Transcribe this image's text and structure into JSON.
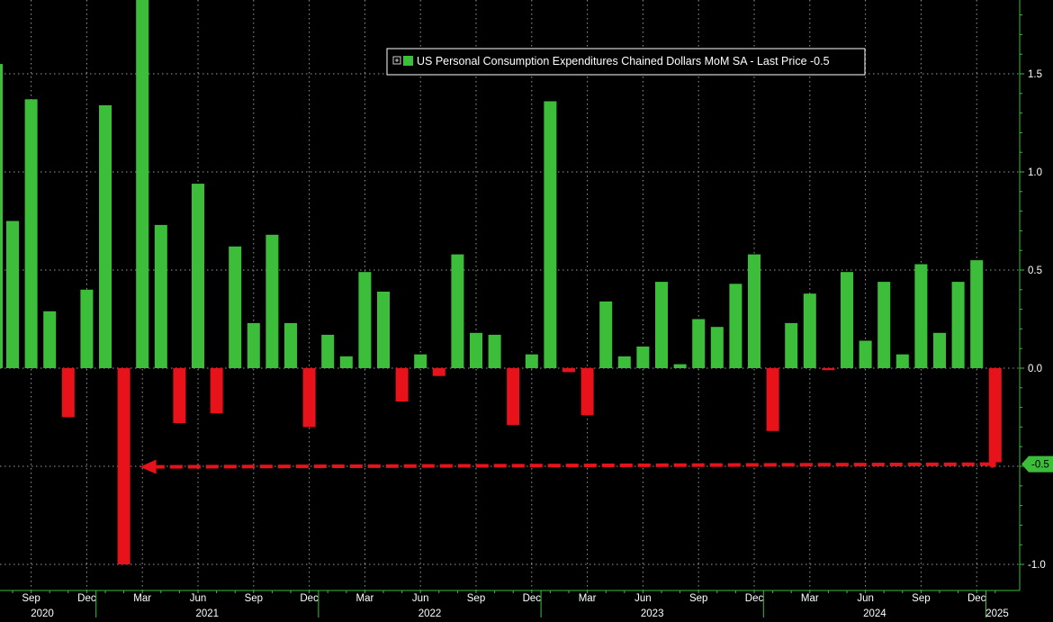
{
  "chart_data": {
    "type": "bar",
    "legend": {
      "label": "US Personal Consumption Expenditures Chained Dollars MoM SA - Last Price -0.5",
      "icon": "plus-box-icon",
      "position": "top-center"
    },
    "y_axis": {
      "side": "right",
      "ylim": [
        -1.0,
        1.9
      ],
      "ticks": [
        1.5,
        1.0,
        0.5,
        0.0,
        -0.5,
        -1.0
      ],
      "tick_labels": [
        "1.5",
        "1.0",
        "0.5",
        "0.0",
        "-0.5",
        "-1.0"
      ]
    },
    "last_price_label": "-0.5",
    "last_value": -0.48,
    "x_axis": {
      "month_labels": [
        {
          "index": 1,
          "label": "Sep"
        },
        {
          "index": 4,
          "label": "Dec"
        },
        {
          "index": 7,
          "label": "Mar"
        },
        {
          "index": 10,
          "label": "Jun"
        },
        {
          "index": 13,
          "label": "Sep"
        },
        {
          "index": 16,
          "label": "Dec"
        },
        {
          "index": 19,
          "label": "Mar"
        },
        {
          "index": 22,
          "label": "Jun"
        },
        {
          "index": 25,
          "label": "Sep"
        },
        {
          "index": 28,
          "label": "Dec"
        },
        {
          "index": 31,
          "label": "Mar"
        },
        {
          "index": 34,
          "label": "Jun"
        },
        {
          "index": 37,
          "label": "Sep"
        },
        {
          "index": 40,
          "label": "Dec"
        },
        {
          "index": 43,
          "label": "Mar"
        },
        {
          "index": 46,
          "label": "Jun"
        },
        {
          "index": 49,
          "label": "Sep"
        },
        {
          "index": 52,
          "label": "Dec"
        }
      ],
      "year_labels": [
        {
          "label": "2020",
          "start": -1,
          "end": 4
        },
        {
          "label": "2021",
          "start": 4,
          "end": 16
        },
        {
          "label": "2022",
          "start": 16,
          "end": 28
        },
        {
          "label": "2023",
          "start": 28,
          "end": 40
        },
        {
          "label": "2024",
          "start": 40,
          "end": 52
        },
        {
          "label": "2025",
          "start": 52,
          "end": 54
        }
      ]
    },
    "x_start": "Aug 2020",
    "x_end": "Jan 2025",
    "series": [
      {
        "values": [
          0.75,
          1.37,
          0.29,
          -0.25,
          0.4,
          1.34,
          -1.0,
          1.98,
          0.73,
          -0.28,
          0.94,
          -0.23,
          0.62,
          0.23,
          0.68,
          0.23,
          -0.3,
          0.17,
          0.06,
          0.49,
          0.39,
          -0.17,
          0.07,
          -0.04,
          0.58,
          0.18,
          0.17,
          -0.29,
          0.07,
          1.36,
          -0.02,
          -0.24,
          0.34,
          0.06,
          0.11,
          0.44,
          0.02,
          0.25,
          0.21,
          0.43,
          0.58,
          -0.32,
          0.23,
          0.38,
          -0.01,
          0.49,
          0.14,
          0.44,
          0.07,
          0.53,
          0.18,
          0.44,
          0.55,
          -0.48
        ]
      }
    ],
    "partial_bar_left": 1.55,
    "colors": {
      "positive": "#3dbe3a",
      "negative": "#e8121b",
      "axis": "#3dbe3a",
      "grid": "#9a9a9a",
      "background": "#000000",
      "text": "#ffffff",
      "arrow": "#e8121b"
    },
    "annotation": {
      "type": "dashed-arrow",
      "from_value": -0.48,
      "to_value": -0.48,
      "from_index": 53,
      "to_index": 6,
      "color": "#e8121b"
    },
    "grid": true
  }
}
